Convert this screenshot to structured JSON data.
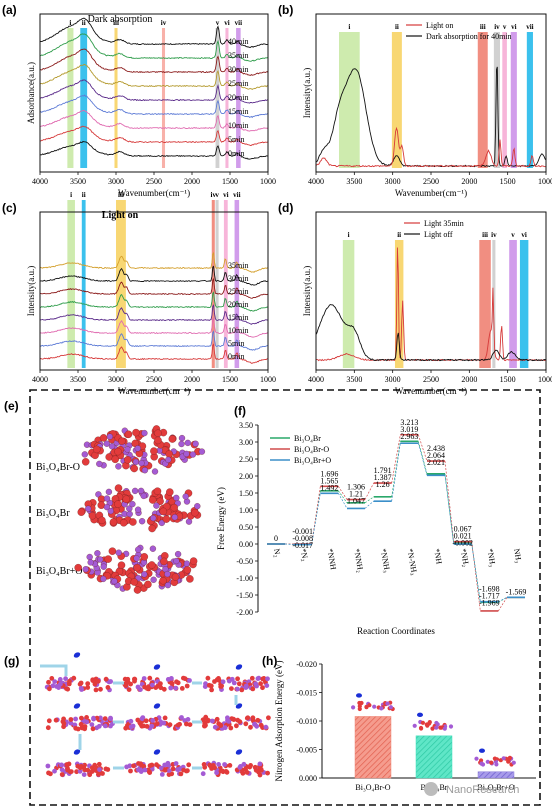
{
  "panel_letters": [
    "(a)",
    "(b)",
    "(c)",
    "(d)",
    "(e)",
    "(f)",
    "(g)",
    "(h)"
  ],
  "band_colors": {
    "green": "#c6e8a0",
    "cyan": "#19b6ea",
    "yellow": "#f7d05a",
    "salmon": "#f7a39a",
    "grey": "#c9c9c9",
    "pink": "#f6a8d2",
    "violet": "#c98be8",
    "red": "#ee7a6b"
  },
  "chart_data": [
    {
      "id": "a",
      "type": "line",
      "title": "Dark absorption",
      "xlabel": "Wavenumber(cm⁻¹)",
      "ylabel": "Adsorbance(a.u.)",
      "xlim": [
        4000,
        1000
      ],
      "xticks": [
        4000,
        3500,
        3000,
        2500,
        2000,
        1500,
        1000
      ],
      "series_labels": [
        "40min",
        "35min",
        "30min",
        "25min",
        "20min",
        "15min",
        "10min",
        "5min",
        "0min"
      ],
      "series_colors": [
        "#111111",
        "#2e9c4a",
        "#8b1a1a",
        "#b49a2e",
        "#5a2a8a",
        "#5d7bd6",
        "#e06ab0",
        "#d63a3a",
        "#111111"
      ],
      "bands": [
        {
          "label": "i",
          "from": 3640,
          "to": 3560,
          "color": "green"
        },
        {
          "label": "ii",
          "from": 3470,
          "to": 3380,
          "color": "cyan"
        },
        {
          "label": "iii",
          "from": 3020,
          "to": 2980,
          "color": "yellow"
        },
        {
          "label": "iv",
          "from": 2395,
          "to": 2355,
          "color": "salmon"
        },
        {
          "label": "v",
          "from": 1690,
          "to": 1640,
          "color": "grey"
        },
        {
          "label": "vi",
          "from": 1560,
          "to": 1520,
          "color": "pink"
        },
        {
          "label": "vii",
          "from": 1420,
          "to": 1360,
          "color": "violet"
        }
      ]
    },
    {
      "id": "b",
      "type": "line",
      "xlabel": "Wavenumber(cm⁻¹)",
      "ylabel": "Intensity(a.u.)",
      "xlim": [
        4000,
        1000
      ],
      "xticks": [
        4000,
        3500,
        3000,
        2500,
        2000,
        1500,
        1000
      ],
      "legend": [
        {
          "name": "Light on",
          "color": "#d63a3a"
        },
        {
          "name": "Dark absorption for 40min",
          "color": "#111111"
        }
      ],
      "legend_position": "top-right",
      "bands": [
        {
          "label": "i",
          "from": 3700,
          "to": 3430,
          "color": "green"
        },
        {
          "label": "ii",
          "from": 3010,
          "to": 2880,
          "color": "yellow"
        },
        {
          "label": "iii",
          "from": 1890,
          "to": 1760,
          "color": "red"
        },
        {
          "label": "iv",
          "from": 1680,
          "to": 1600,
          "color": "grey"
        },
        {
          "label": "v",
          "from": 1570,
          "to": 1510,
          "color": "pink"
        },
        {
          "label": "vi",
          "from": 1460,
          "to": 1380,
          "color": "violet"
        },
        {
          "label": "vii",
          "from": 1250,
          "to": 1170,
          "color": "cyan"
        }
      ]
    },
    {
      "id": "c",
      "type": "line",
      "title": "Light on",
      "xlabel": "Wavenumber(cm⁻¹)",
      "ylabel": "Intensity(a.u.)",
      "xlim": [
        4000,
        1000
      ],
      "xticks": [
        4000,
        3500,
        3000,
        2500,
        2000,
        1500,
        1000
      ],
      "series_labels": [
        "35min",
        "30min",
        "25min",
        "20min",
        "15min",
        "10min",
        "5min",
        "0min"
      ],
      "series_colors": [
        "#d4a02e",
        "#111111",
        "#8b1a1a",
        "#2e9c4a",
        "#5a2a8a",
        "#e06ab0",
        "#5d7bd6",
        "#d63a3a"
      ],
      "bands": [
        {
          "label": "i",
          "from": 3640,
          "to": 3540,
          "color": "green"
        },
        {
          "label": "ii",
          "from": 3450,
          "to": 3400,
          "color": "cyan"
        },
        {
          "label": "iii",
          "from": 3000,
          "to": 2870,
          "color": "yellow"
        },
        {
          "label": "iv",
          "from": 1740,
          "to": 1700,
          "color": "red"
        },
        {
          "label": "v",
          "from": 1690,
          "to": 1650,
          "color": "grey"
        },
        {
          "label": "vi",
          "from": 1580,
          "to": 1530,
          "color": "pink"
        },
        {
          "label": "vii",
          "from": 1440,
          "to": 1380,
          "color": "violet"
        }
      ]
    },
    {
      "id": "d",
      "type": "line",
      "xlabel": "Wavenumber(cm⁻¹)",
      "ylabel": "Intensity(a.u.)",
      "xlim": [
        4000,
        1000
      ],
      "xticks": [
        4000,
        3500,
        3000,
        2500,
        2000,
        1500,
        1000
      ],
      "legend": [
        {
          "name": "Light 35min",
          "color": "#d63a3a"
        },
        {
          "name": "Light off",
          "color": "#111111"
        }
      ],
      "legend_position": "top-right",
      "bands": [
        {
          "label": "i",
          "from": 3650,
          "to": 3500,
          "color": "green"
        },
        {
          "label": "ii",
          "from": 2970,
          "to": 2860,
          "color": "yellow"
        },
        {
          "label": "iii",
          "from": 1870,
          "to": 1720,
          "color": "red"
        },
        {
          "label": "iv",
          "from": 1700,
          "to": 1660,
          "color": "grey"
        },
        {
          "label": "v",
          "from": 1480,
          "to": 1380,
          "color": "violet"
        },
        {
          "label": "vi",
          "from": 1340,
          "to": 1230,
          "color": "cyan"
        }
      ]
    },
    {
      "id": "f",
      "type": "line",
      "xlabel": "Reaction Coordinates",
      "ylabel": "Free Energy (eV)",
      "ylim": [
        -2.0,
        3.5
      ],
      "yticks": [
        -2.0,
        -1.5,
        -1.0,
        -0.5,
        0.0,
        0.5,
        1.0,
        1.5,
        2.0,
        2.5,
        3.0,
        3.5
      ],
      "categories": [
        "N₂",
        "*N₂",
        "*NNH",
        "*NNH₂",
        "*NNH₃",
        "*N-NH₃",
        "*NH",
        "*NH₂",
        "*NH₃",
        "NH₃"
      ],
      "legend_position": "top-left",
      "series": [
        {
          "name": "Bi₃O₄Br",
          "color": "#2aa86a",
          "values": [
            0,
            -0.008,
            1.565,
            1.21,
            1.387,
            3.019,
            2.064,
            0.021,
            -1.717,
            -1.569
          ]
        },
        {
          "name": "Bi₃O₄Br-O",
          "color": "#d14b4b",
          "values": [
            0,
            -0.001,
            1.696,
            1.306,
            1.791,
            3.213,
            2.438,
            0.067,
            -1.969,
            -1.569
          ]
        },
        {
          "name": "Bi₃O₄Br+O",
          "color": "#3b8fc9",
          "values": [
            0,
            -0.017,
            1.492,
            1.047,
            1.26,
            2.963,
            2.021,
            -0.002,
            -1.698,
            -1.569
          ]
        }
      ]
    },
    {
      "id": "h",
      "type": "bar",
      "ylabel": "Nitrogen Adsorption Energy (eV)",
      "ylim": [
        0.0,
        -0.02
      ],
      "yticks": [
        "0.000",
        "-0.005",
        "-0.010",
        "-0.015",
        "-0.020"
      ],
      "categories": [
        "Bi₃O₄Br-O",
        "Bi₃O₄Br",
        "Bi₃O₄Br+O"
      ],
      "values": [
        -0.0108,
        -0.0074,
        -0.0011
      ],
      "colors": [
        "#f08878",
        "#3fe0bd",
        "#8a7bd8"
      ]
    }
  ],
  "panel_e": {
    "labels": [
      "Bi₃O₄Br-O",
      "Bi₃O₄Br",
      "Bi₃O₄Br+O"
    ]
  },
  "watermark": "NanoResearch"
}
